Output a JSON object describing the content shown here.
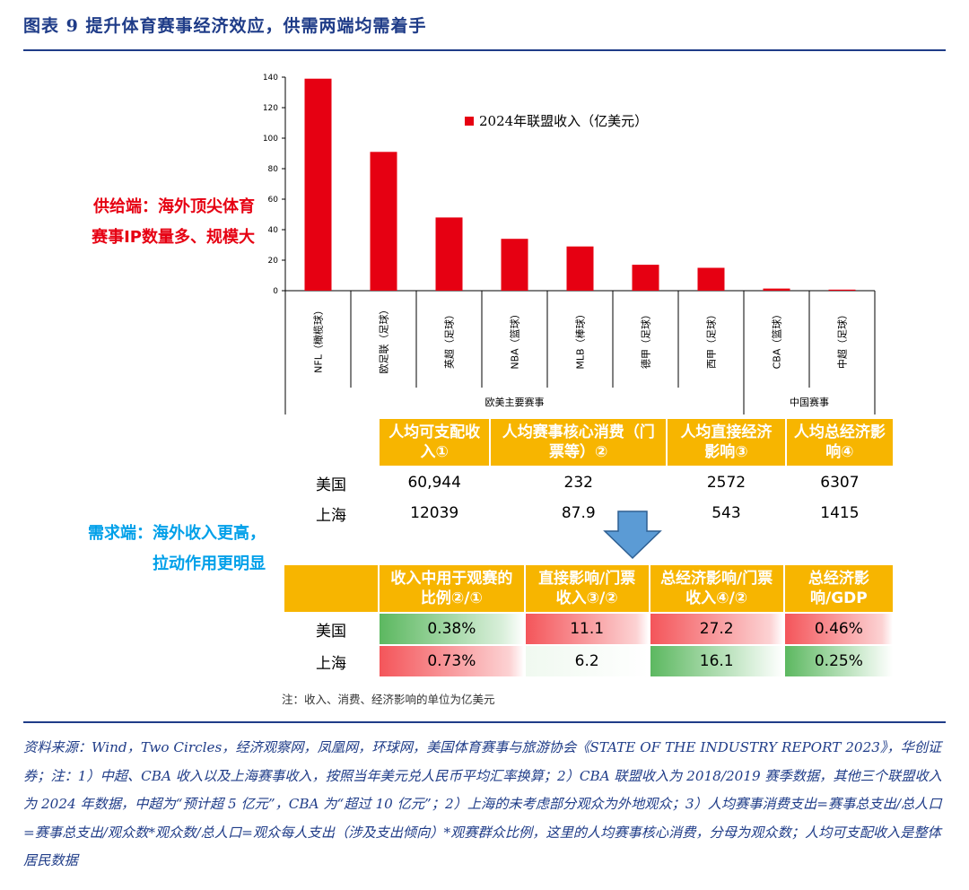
{
  "title": "图表 9   提升体育赛事经济效应，供需两端均需着手",
  "supply_label": [
    "供给端：海外顶尖体育",
    "赛事IP数量多、规模大"
  ],
  "demand_label": [
    "需求端：海外收入更高，",
    "拉动作用更明显"
  ],
  "chart_data": {
    "type": "bar",
    "legend": "2024年联盟收入（亿美元）",
    "categories": [
      "NFL（橄榄球）",
      "欧足联（足球）",
      "英超（足球）",
      "NBA（篮球）",
      "MLB（棒球）",
      "德甲（足球）",
      "西甲（足球）",
      "CBA（篮球）",
      "中超（足球）"
    ],
    "values": [
      139,
      91,
      48,
      34,
      29,
      17,
      15,
      1.4,
      0.7
    ],
    "ylim": [
      0,
      140
    ],
    "yticks": [
      0,
      20,
      40,
      60,
      80,
      100,
      120,
      140
    ],
    "groups": [
      {
        "label": "欧美主要赛事",
        "count": 7
      },
      {
        "label": "中国赛事",
        "count": 2
      }
    ],
    "color": "#e60012",
    "legend_position": "top-right"
  },
  "table1": {
    "headers": [
      "人均可支配收入①",
      "人均赛事核心消费（门票等）②",
      "人均直接经济影响③",
      "人均总经济影响④"
    ],
    "rows": [
      {
        "label": "美国",
        "values": [
          "60,944",
          "232",
          "2572",
          "6307"
        ]
      },
      {
        "label": "上海",
        "values": [
          "12039",
          "87.9",
          "543",
          "1415"
        ]
      }
    ]
  },
  "table2": {
    "headers": [
      "收入中用于观赛的比例②/①",
      "直接影响/门票收入③/②",
      "总经济影响/门票收入④/②",
      "总经济影响/GDP"
    ],
    "rows": [
      {
        "label": "美国",
        "values": [
          "0.38%",
          "11.1",
          "27.2",
          "0.46%"
        ]
      },
      {
        "label": "上海",
        "values": [
          "0.73%",
          "6.2",
          "16.1",
          "0.25%"
        ]
      }
    ]
  },
  "note": "注：收入、消费、经济影响的单位为亿美元",
  "source": "资料来源：Wind，Two Circles，经济观察网，凤凰网，环球网，美国体育赛事与旅游协会《STATE OF THE INDUSTRY REPORT 2023》，华创证券；注：1）中超、CBA 收入以及上海赛事收入，按照当年美元兑人民币平均汇率换算；2）CBA 联盟收入为 2018/2019 赛季数据，其他三个联盟收入为 2024 年数据，中超为“预计超 5 亿元”，CBA 为“超过 10 亿元”；2）上海的未考虑部分观众为外地观众；3）人均赛事消费支出=赛事总支出/总人口=赛事总支出/观众数*观众数/总人口=观众每人支出（涉及支出倾向）*观赛群众比例，这里的人均赛事核心消费，分母为观众数；人均可支配收入是整体居民数据"
}
